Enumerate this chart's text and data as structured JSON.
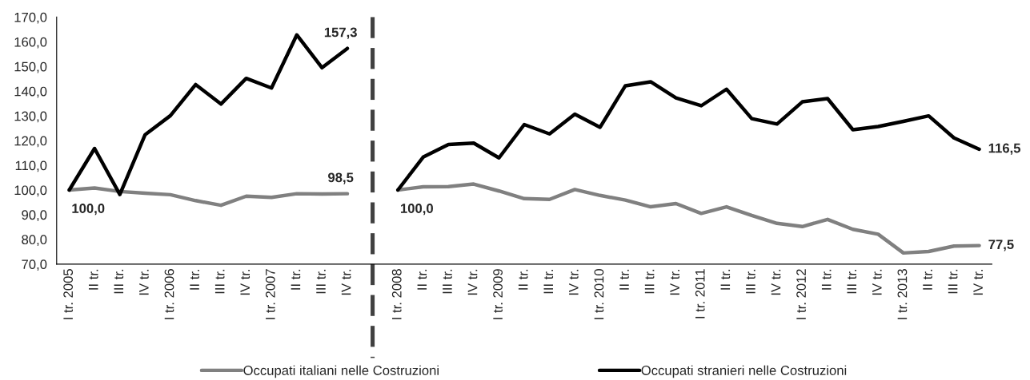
{
  "chart_data": {
    "type": "line",
    "categories": [
      "I tr. 2005",
      "II tr.",
      "III tr.",
      "IV tr.",
      "I tr. 2006",
      "II tr.",
      "III tr.",
      "IV tr.",
      "I tr. 2007",
      "II tr.",
      "III tr.",
      "IV tr.",
      null,
      "I tr. 2008",
      "II tr.",
      "III tr.",
      "IV tr.",
      "I tr. 2009",
      "II tr.",
      "III tr.",
      "IV tr.",
      "I tr. 2010",
      "II tr.",
      "III tr.",
      "IV tr.",
      "I tr. 2011",
      "II tr.",
      "III tr.",
      "IV tr.",
      "I tr. 2012",
      "II tr.",
      "III tr.",
      "IV tr.",
      "I tr. 2013",
      "II tr.",
      "III tr.",
      "IV tr."
    ],
    "series": [
      {
        "name": "Occupati italiani nelle Costruzioni",
        "color": "#808080",
        "values": [
          100,
          100.8,
          99.4,
          98.7,
          98.1,
          95.7,
          93.8,
          97.5,
          97,
          98.5,
          98.4,
          98.5,
          null,
          100,
          101.3,
          101.4,
          102.4,
          99.6,
          96.5,
          96.2,
          100.2,
          97.8,
          95.9,
          93.2,
          94.5,
          90.5,
          93.2,
          89.7,
          86.5,
          85.2,
          88.1,
          84.1,
          82.1,
          74.5,
          75.1,
          77.3,
          77.5
        ],
        "value_labels": [
          null,
          null,
          null,
          null,
          null,
          null,
          null,
          null,
          null,
          null,
          null,
          "98,5",
          null,
          null,
          null,
          null,
          null,
          null,
          null,
          null,
          null,
          null,
          null,
          null,
          null,
          null,
          null,
          null,
          null,
          null,
          null,
          null,
          null,
          null,
          null,
          null,
          "77,5"
        ]
      },
      {
        "name": "Occupati stranieri nelle Costruzioni",
        "color": "#000000",
        "values": [
          100,
          116.8,
          98.2,
          122.4,
          130.1,
          142.7,
          134.8,
          145.2,
          141.3,
          162.8,
          149.5,
          157.3,
          null,
          100,
          113.3,
          118.4,
          119,
          113,
          126.5,
          122.7,
          130.7,
          125.4,
          142.2,
          143.8,
          137.3,
          134.1,
          140.8,
          128.9,
          126.7,
          135.7,
          137,
          124.4,
          125.7,
          127.8,
          130,
          121.1,
          116.5
        ],
        "value_labels": [
          "100,0",
          null,
          null,
          null,
          null,
          null,
          null,
          null,
          null,
          null,
          null,
          "157,3",
          null,
          "100,0",
          null,
          null,
          null,
          null,
          null,
          null,
          null,
          null,
          null,
          null,
          null,
          null,
          null,
          null,
          null,
          null,
          null,
          null,
          null,
          null,
          null,
          null,
          "116,5"
        ]
      }
    ],
    "ylim": [
      70,
      170
    ],
    "yticks": [
      {
        "value": 70,
        "label": "70,0"
      },
      {
        "value": 80,
        "label": "80,0"
      },
      {
        "value": 90,
        "label": "90,0"
      },
      {
        "value": 100,
        "label": "100,0"
      },
      {
        "value": 110,
        "label": "110,0"
      },
      {
        "value": 120,
        "label": "120,0"
      },
      {
        "value": 130,
        "label": "130,0"
      },
      {
        "value": 140,
        "label": "140,0"
      },
      {
        "value": 150,
        "label": "150,0"
      },
      {
        "value": 160,
        "label": "160,0"
      },
      {
        "value": 170,
        "label": "170,0"
      }
    ],
    "legend": "bottom",
    "grid": false
  }
}
